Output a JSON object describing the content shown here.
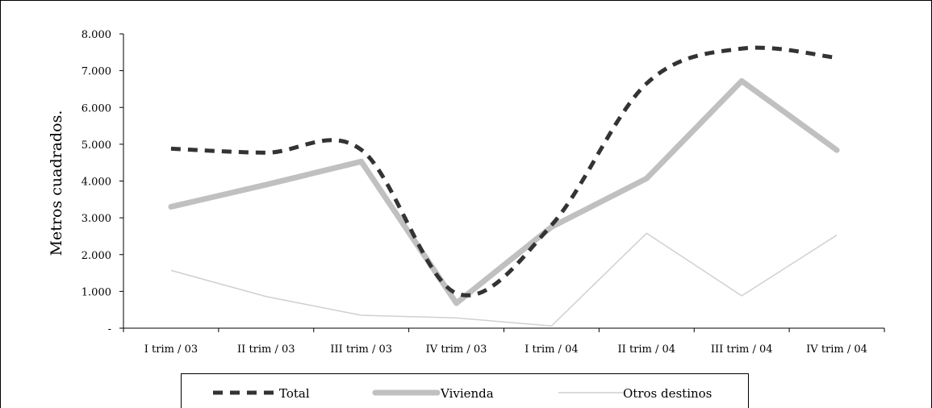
{
  "chart_data": {
    "type": "line",
    "ylabel": "Metros cuadrados.",
    "ylim": [
      0,
      8000
    ],
    "yticks": [
      {
        "value": 0,
        "label": "-"
      },
      {
        "value": 1000,
        "label": "1.000"
      },
      {
        "value": 2000,
        "label": "2.000"
      },
      {
        "value": 3000,
        "label": "3.000"
      },
      {
        "value": 4000,
        "label": "4.000"
      },
      {
        "value": 5000,
        "label": "5.000"
      },
      {
        "value": 6000,
        "label": "6.000"
      },
      {
        "value": 7000,
        "label": "7.000"
      },
      {
        "value": 8000,
        "label": "8.000"
      }
    ],
    "categories": [
      "I trim / 03",
      "II trim / 03",
      "III trim / 03",
      "IV trim / 03",
      "I trim / 04",
      "II trim / 04",
      "III trim / 04",
      "IV trim / 04"
    ],
    "legend_position": "bottom",
    "grid": false,
    "series": [
      {
        "name": "Total",
        "values": [
          4880,
          4770,
          4850,
          950,
          2800,
          6650,
          7600,
          7350
        ],
        "color": "#333333",
        "style": "dashed"
      },
      {
        "name": "Vivienda",
        "values": [
          3300,
          3900,
          4530,
          680,
          2750,
          4070,
          6720,
          4840
        ],
        "color": "#c0c0c0",
        "style": "thick"
      },
      {
        "name": "Otros destinos",
        "values": [
          1570,
          860,
          350,
          280,
          60,
          2580,
          880,
          2530
        ],
        "color": "#d0d0d0",
        "style": "thin"
      }
    ]
  }
}
